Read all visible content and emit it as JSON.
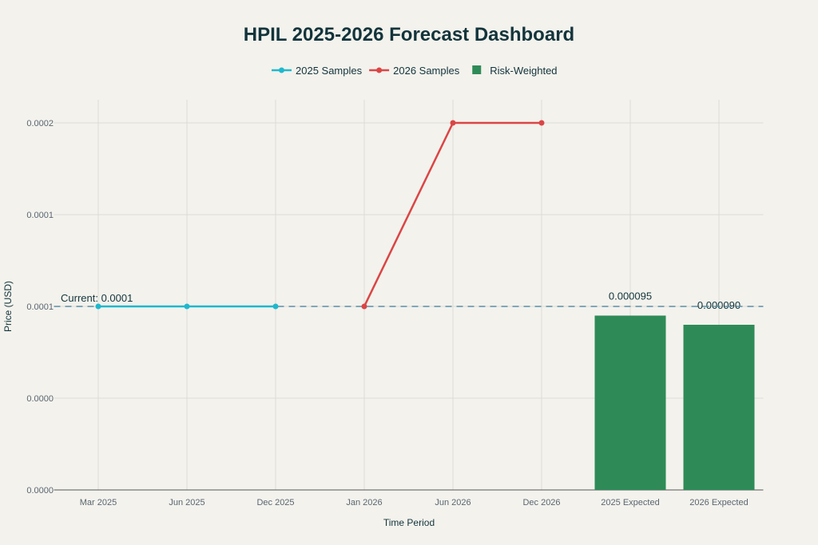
{
  "chart_data": {
    "type": "line+bar",
    "title": "HPIL 2025-2026 Forecast Dashboard",
    "xlabel": "Time Period",
    "ylabel": "Price (USD)",
    "categories": [
      "Mar 2025",
      "Jun 2025",
      "Dec 2025",
      "Jan 2026",
      "Jun 2026",
      "Dec 2026",
      "2025 Expected",
      "2026 Expected"
    ],
    "ylim": [
      0,
      0.0002
    ],
    "yticks": [
      0,
      5e-05,
      0.0001,
      0.00015,
      0.0002
    ],
    "ytick_labels": [
      "0.0000",
      "0.0000",
      "0.0001",
      "0.0001",
      "0.0002"
    ],
    "grid": true,
    "legend_position": "top-center",
    "series": [
      {
        "name": "2025 Samples",
        "type": "line",
        "color": "#1fb8cd",
        "x": [
          "Mar 2025",
          "Jun 2025",
          "Dec 2025"
        ],
        "values": [
          0.0001,
          0.0001,
          0.0001
        ]
      },
      {
        "name": "2026 Samples",
        "type": "line",
        "color": "#db4545",
        "x": [
          "Jan 2026",
          "Jun 2026",
          "Dec 2026"
        ],
        "values": [
          0.0001,
          0.0002,
          0.0002
        ]
      },
      {
        "name": "Risk-Weighted",
        "type": "bar",
        "color": "#2e8b57",
        "x": [
          "2025 Expected",
          "2026 Expected"
        ],
        "values": [
          9.5e-05,
          9e-05
        ],
        "labels": [
          "0.000095",
          "0.000090"
        ]
      }
    ],
    "reference_line": {
      "value": 0.0001,
      "label": "Current: 0.0001",
      "style": "dashed",
      "color": "#5b8fa8"
    }
  }
}
